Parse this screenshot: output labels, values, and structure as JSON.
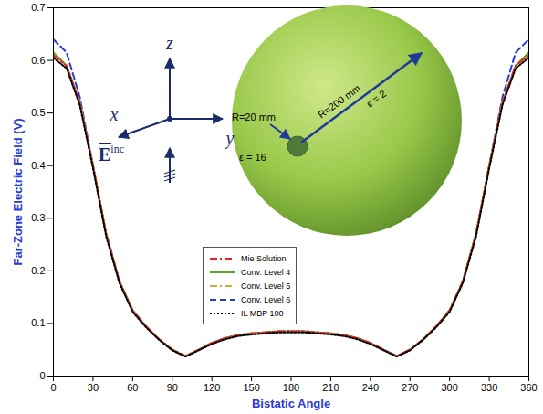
{
  "chart_data": {
    "type": "line",
    "xlabel": "Bistatic Angle",
    "ylabel": "Far-Zone Electric Field (V)",
    "x": [
      0,
      10,
      20,
      30,
      40,
      50,
      60,
      70,
      80,
      90,
      100,
      110,
      120,
      130,
      140,
      150,
      160,
      170,
      180,
      190,
      200,
      210,
      220,
      230,
      240,
      250,
      260,
      270,
      280,
      290,
      300,
      310,
      320,
      330,
      340,
      350,
      360
    ],
    "xlim": [
      0,
      360
    ],
    "xticks": [
      0,
      30,
      60,
      90,
      120,
      150,
      180,
      210,
      240,
      270,
      300,
      330,
      360
    ],
    "ylim": [
      0,
      0.7
    ],
    "yticks": [
      0,
      0.1,
      0.2,
      0.3,
      0.4,
      0.5,
      0.6,
      0.7
    ],
    "grid": false,
    "legend": "center",
    "series": [
      {
        "name": "Conv. Level 6",
        "color": "#2a3ad8",
        "line_style": "dashed",
        "values": [
          0.64,
          0.615,
          0.53,
          0.4,
          0.27,
          0.18,
          0.125,
          0.095,
          0.07,
          0.05,
          0.038,
          0.05,
          0.063,
          0.072,
          0.078,
          0.081,
          0.083,
          0.085,
          0.085,
          0.085,
          0.083,
          0.081,
          0.078,
          0.072,
          0.063,
          0.05,
          0.038,
          0.05,
          0.07,
          0.095,
          0.125,
          0.18,
          0.27,
          0.4,
          0.53,
          0.615,
          0.64
        ]
      },
      {
        "name": "Conv. Level 4",
        "color": "#5aa02c",
        "line_style": "solid",
        "values": [
          0.615,
          0.59,
          0.52,
          0.4,
          0.27,
          0.18,
          0.125,
          0.095,
          0.07,
          0.05,
          0.038,
          0.05,
          0.063,
          0.072,
          0.078,
          0.081,
          0.083,
          0.085,
          0.085,
          0.085,
          0.083,
          0.081,
          0.078,
          0.072,
          0.063,
          0.05,
          0.038,
          0.05,
          0.07,
          0.095,
          0.125,
          0.18,
          0.27,
          0.4,
          0.52,
          0.59,
          0.615
        ]
      },
      {
        "name": "Conv. Level 5",
        "color": "#c9b038",
        "line_style": "dashdot",
        "values": [
          0.61,
          0.59,
          0.52,
          0.4,
          0.27,
          0.18,
          0.124,
          0.094,
          0.07,
          0.05,
          0.038,
          0.05,
          0.062,
          0.071,
          0.077,
          0.08,
          0.082,
          0.084,
          0.084,
          0.084,
          0.082,
          0.08,
          0.077,
          0.071,
          0.062,
          0.05,
          0.038,
          0.05,
          0.07,
          0.094,
          0.124,
          0.18,
          0.27,
          0.4,
          0.52,
          0.59,
          0.61
        ]
      },
      {
        "name": "Mie Solution",
        "color": "#e8262a",
        "line_style": "dashdot",
        "values": [
          0.61,
          0.59,
          0.52,
          0.4,
          0.27,
          0.18,
          0.125,
          0.095,
          0.07,
          0.05,
          0.038,
          0.05,
          0.063,
          0.072,
          0.078,
          0.081,
          0.083,
          0.085,
          0.085,
          0.085,
          0.083,
          0.081,
          0.078,
          0.072,
          0.063,
          0.05,
          0.038,
          0.05,
          0.07,
          0.095,
          0.125,
          0.18,
          0.27,
          0.4,
          0.52,
          0.59,
          0.61
        ]
      },
      {
        "name": "IL MBP 100",
        "color": "#000000",
        "line_style": "dotted",
        "values": [
          0.605,
          0.585,
          0.515,
          0.395,
          0.265,
          0.177,
          0.122,
          0.093,
          0.069,
          0.049,
          0.037,
          0.049,
          0.061,
          0.07,
          0.076,
          0.079,
          0.081,
          0.083,
          0.083,
          0.083,
          0.081,
          0.079,
          0.076,
          0.07,
          0.061,
          0.049,
          0.037,
          0.049,
          0.069,
          0.093,
          0.122,
          0.177,
          0.265,
          0.395,
          0.515,
          0.585,
          0.605
        ]
      }
    ],
    "legend_order": [
      "Mie Solution",
      "Conv. Level 4",
      "Conv. Level 5",
      "Conv. Level 6",
      "IL MBP 100"
    ],
    "annotations": {
      "inner_radius": "R=20 mm",
      "inner_permittivity": "ε = 16",
      "outer_radius": "R=200 mm",
      "outer_permittivity": "ε = 2",
      "axis_z": "z",
      "axis_x": "x",
      "axis_y": "y",
      "incident_field": "E",
      "incident_field_superscript": "inc"
    }
  }
}
